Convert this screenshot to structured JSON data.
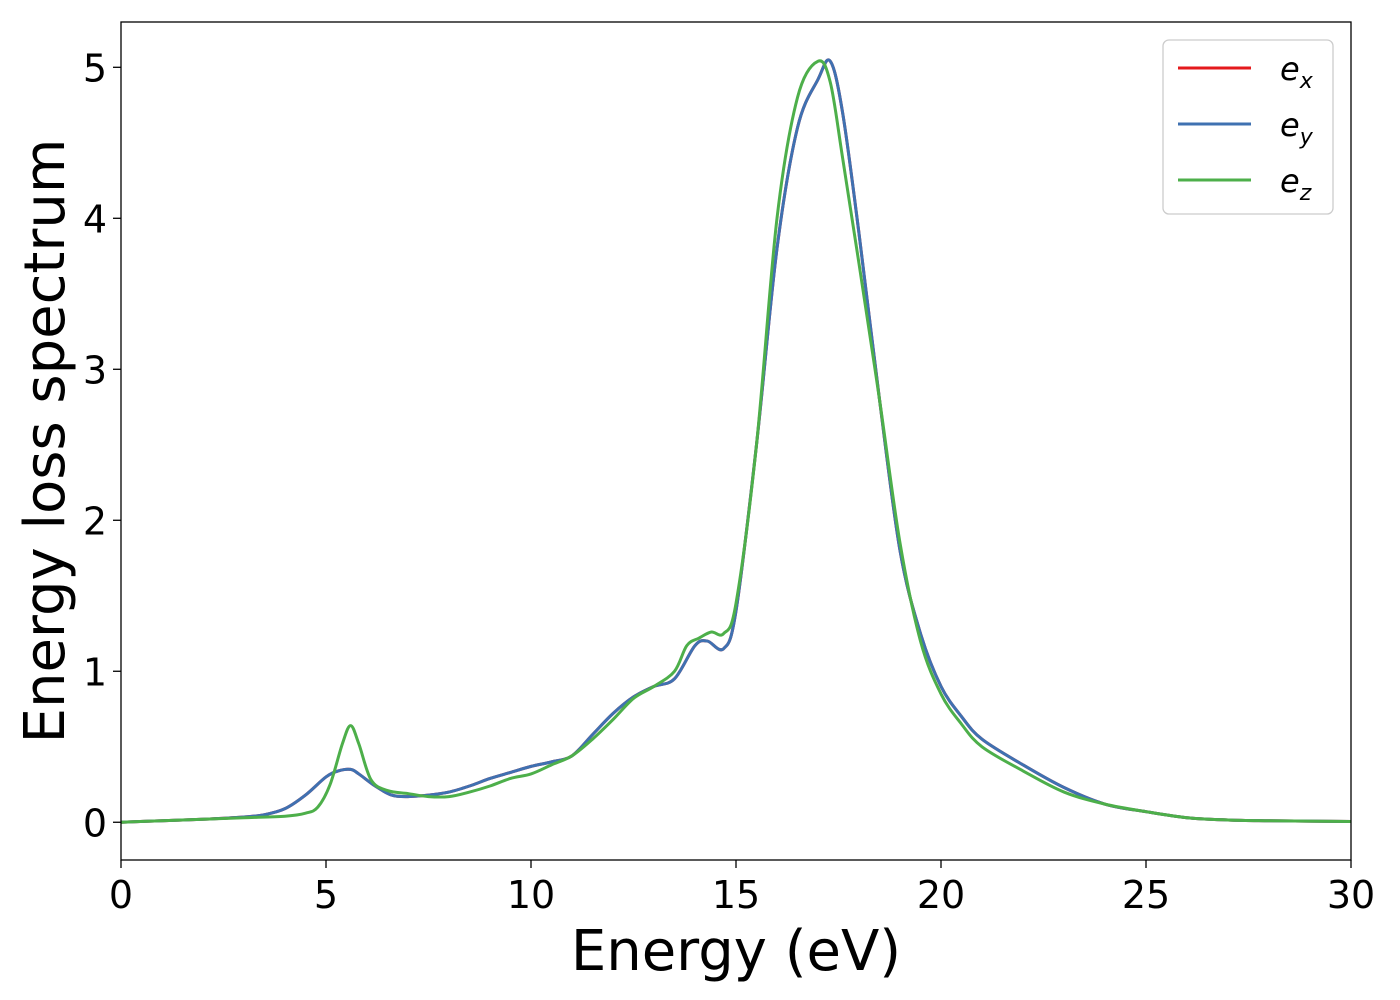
{
  "chart_data": {
    "type": "line",
    "title": "",
    "xlabel": "Energy (eV)",
    "ylabel": "Energy loss spectrum",
    "xlim": [
      0,
      30
    ],
    "ylim": [
      -0.25,
      5.3
    ],
    "xticks": [
      "0",
      "5",
      "10",
      "15",
      "20",
      "25",
      "30"
    ],
    "yticks": [
      "0",
      "1",
      "2",
      "3",
      "4",
      "5"
    ],
    "grid": false,
    "legend_position": "top-right",
    "series": [
      {
        "name": "e",
        "subscript": "x",
        "color": "#e41a1c",
        "x": [
          0,
          1,
          2,
          3,
          3.5,
          4,
          4.5,
          5,
          5.3,
          5.6,
          5.8,
          6.2,
          6.6,
          7,
          7.5,
          8,
          8.5,
          9,
          9.5,
          10,
          10.5,
          11,
          11.5,
          12,
          12.5,
          13,
          13.5,
          14,
          14.3,
          14.7,
          15,
          15.5,
          16,
          16.5,
          17,
          17.3,
          17.6,
          18,
          18.5,
          19,
          19.5,
          20,
          20.5,
          21,
          22,
          23,
          24,
          25,
          26,
          27,
          28,
          30
        ],
        "y": [
          0,
          0.01,
          0.02,
          0.035,
          0.05,
          0.09,
          0.18,
          0.3,
          0.34,
          0.35,
          0.32,
          0.24,
          0.18,
          0.17,
          0.18,
          0.2,
          0.24,
          0.29,
          0.33,
          0.37,
          0.4,
          0.44,
          0.58,
          0.72,
          0.83,
          0.9,
          0.95,
          1.17,
          1.2,
          1.15,
          1.4,
          2.5,
          3.8,
          4.6,
          4.92,
          5.04,
          4.7,
          3.9,
          2.8,
          1.8,
          1.25,
          0.9,
          0.7,
          0.55,
          0.38,
          0.23,
          0.12,
          0.07,
          0.03,
          0.015,
          0.01,
          0.005
        ]
      },
      {
        "name": "e",
        "subscript": "y",
        "color": "#3f71b1",
        "x": [
          0,
          1,
          2,
          3,
          3.5,
          4,
          4.5,
          5,
          5.3,
          5.6,
          5.8,
          6.2,
          6.6,
          7,
          7.5,
          8,
          8.5,
          9,
          9.5,
          10,
          10.5,
          11,
          11.5,
          12,
          12.5,
          13,
          13.5,
          14,
          14.3,
          14.7,
          15,
          15.5,
          16,
          16.5,
          17,
          17.3,
          17.6,
          18,
          18.5,
          19,
          19.5,
          20,
          20.5,
          21,
          22,
          23,
          24,
          25,
          26,
          27,
          28,
          30
        ],
        "y": [
          0,
          0.01,
          0.02,
          0.035,
          0.05,
          0.09,
          0.18,
          0.3,
          0.34,
          0.35,
          0.32,
          0.24,
          0.18,
          0.17,
          0.18,
          0.2,
          0.24,
          0.29,
          0.33,
          0.37,
          0.4,
          0.44,
          0.58,
          0.72,
          0.83,
          0.9,
          0.95,
          1.17,
          1.2,
          1.15,
          1.4,
          2.5,
          3.8,
          4.6,
          4.92,
          5.04,
          4.7,
          3.9,
          2.8,
          1.8,
          1.25,
          0.9,
          0.7,
          0.55,
          0.38,
          0.23,
          0.12,
          0.07,
          0.03,
          0.015,
          0.01,
          0.005
        ]
      },
      {
        "name": "e",
        "subscript": "z",
        "color": "#4daf4a",
        "x": [
          0,
          1,
          2,
          3,
          4,
          4.5,
          4.8,
          5.1,
          5.4,
          5.6,
          5.8,
          6.1,
          6.5,
          7,
          7.5,
          8,
          8.5,
          9,
          9.5,
          10,
          10.5,
          11,
          11.5,
          12,
          12.5,
          13,
          13.5,
          13.8,
          14.1,
          14.4,
          14.7,
          15,
          15.5,
          16,
          16.5,
          17,
          17.3,
          17.6,
          18,
          18.5,
          19,
          19.5,
          20,
          20.5,
          21,
          22,
          23,
          24,
          25,
          26,
          27,
          28,
          30
        ],
        "y": [
          0,
          0.01,
          0.02,
          0.03,
          0.04,
          0.06,
          0.1,
          0.25,
          0.52,
          0.64,
          0.52,
          0.28,
          0.21,
          0.19,
          0.17,
          0.17,
          0.2,
          0.24,
          0.29,
          0.32,
          0.38,
          0.44,
          0.55,
          0.68,
          0.82,
          0.9,
          1.0,
          1.17,
          1.22,
          1.26,
          1.25,
          1.45,
          2.5,
          4.0,
          4.8,
          5.04,
          4.9,
          4.4,
          3.7,
          2.8,
          1.85,
          1.2,
          0.85,
          0.65,
          0.5,
          0.34,
          0.2,
          0.12,
          0.07,
          0.03,
          0.015,
          0.01,
          0.005
        ]
      }
    ]
  }
}
